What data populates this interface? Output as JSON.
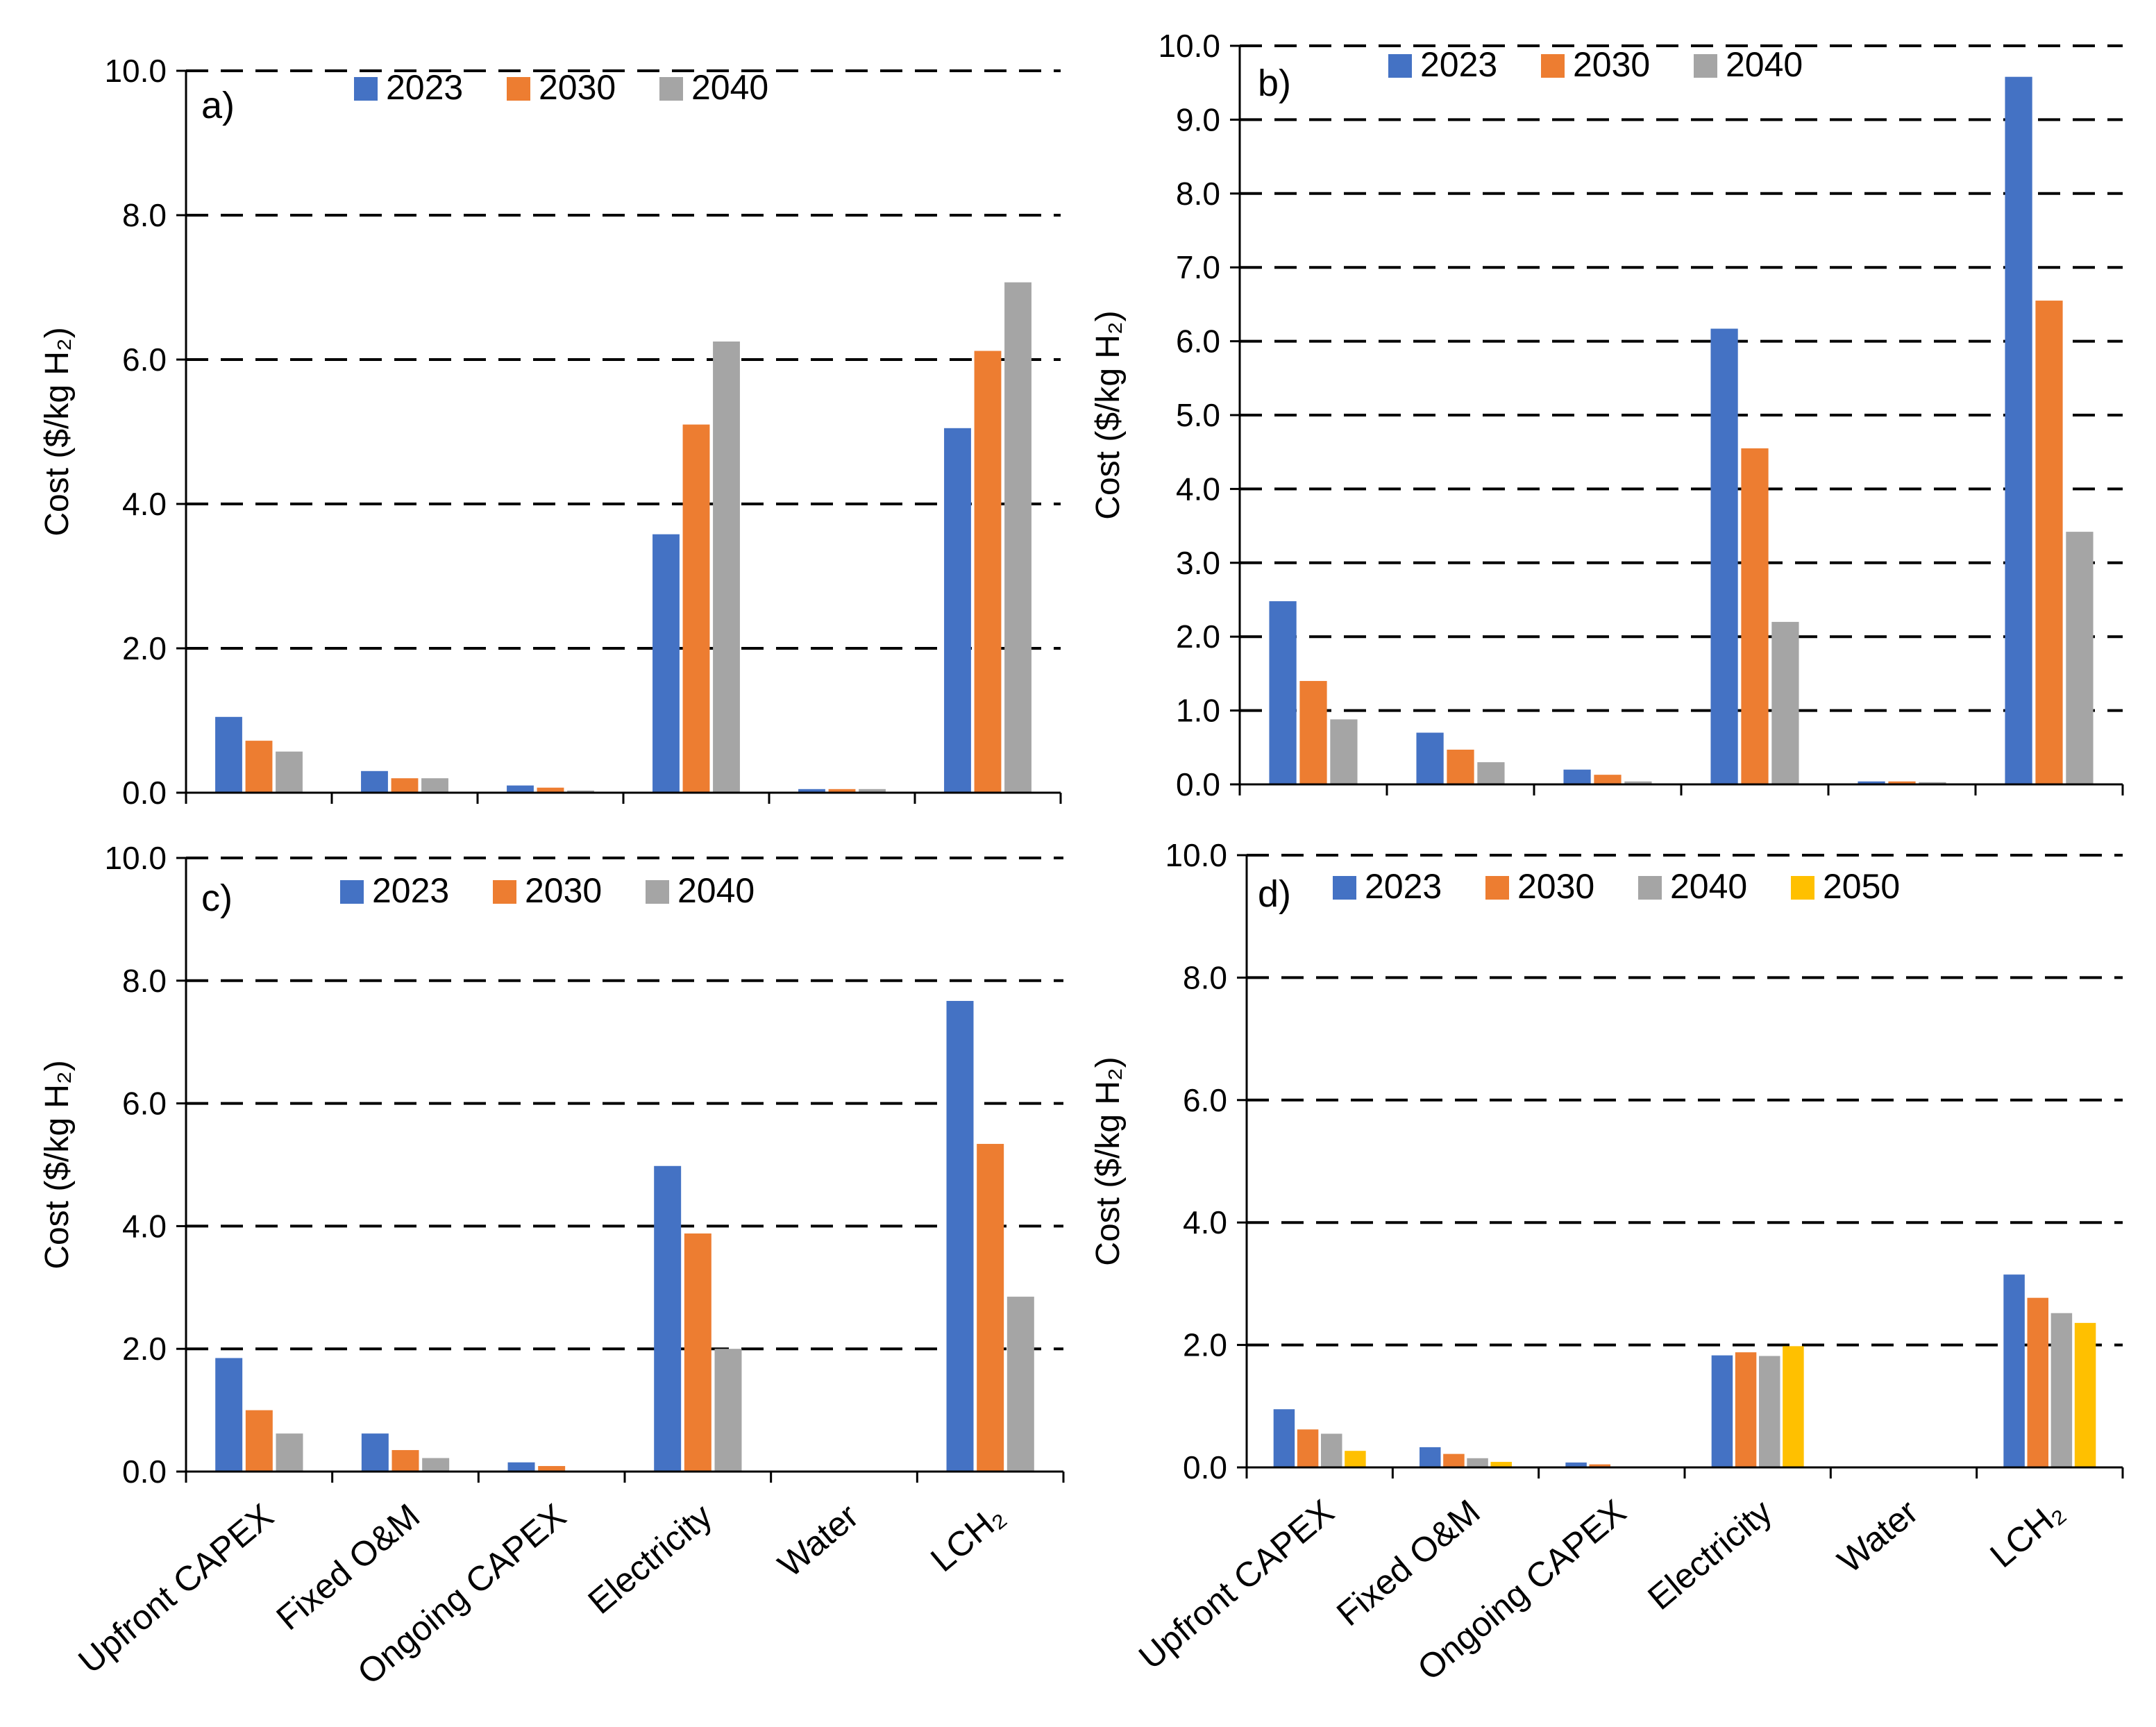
{
  "colors": {
    "2023": "#4472C4",
    "2030": "#ED7D31",
    "2040": "#A5A5A5",
    "2050": "#FFC000"
  },
  "chart_data": [
    {
      "panel_label": "a)",
      "type": "bar",
      "ylabel": "Cost ($/kg H₂)",
      "ylim": [
        0,
        10
      ],
      "ytick_step": 2,
      "yticks": [
        "0.0",
        "2.0",
        "4.0",
        "6.0",
        "8.0",
        "10.0"
      ],
      "grid": "dashed-horizontal",
      "legend": "top-center",
      "categories": [
        "Upfront CAPEX",
        "Fixed O&M",
        "Ongoing CAPEX",
        "Electricity",
        "Water",
        "LCH₂"
      ],
      "show_category_labels": false,
      "series": [
        {
          "name": "2023",
          "values": [
            1.05,
            0.3,
            0.1,
            3.58,
            0.05,
            5.05
          ]
        },
        {
          "name": "2030",
          "values": [
            0.72,
            0.2,
            0.07,
            5.1,
            0.05,
            6.12
          ]
        },
        {
          "name": "2040",
          "values": [
            0.57,
            0.2,
            0.03,
            6.25,
            0.05,
            7.07
          ]
        }
      ]
    },
    {
      "panel_label": "b)",
      "type": "bar",
      "ylabel": "Cost ($/kg H₂)",
      "ylim": [
        0,
        10
      ],
      "ytick_step": 1,
      "yticks": [
        "0.0",
        "1.0",
        "2.0",
        "3.0",
        "4.0",
        "5.0",
        "6.0",
        "7.0",
        "8.0",
        "9.0",
        "10.0"
      ],
      "grid": "dashed-horizontal",
      "legend": "top-center",
      "categories": [
        "Upfront CAPEX",
        "Fixed O&M",
        "Ongoing CAPEX",
        "Electricity",
        "Water",
        "LCH₂"
      ],
      "show_category_labels": false,
      "series": [
        {
          "name": "2023",
          "values": [
            2.48,
            0.7,
            0.2,
            6.17,
            0.04,
            9.58
          ]
        },
        {
          "name": "2030",
          "values": [
            1.4,
            0.47,
            0.13,
            4.55,
            0.04,
            6.55
          ]
        },
        {
          "name": "2040",
          "values": [
            0.88,
            0.3,
            0.04,
            2.2,
            0.03,
            3.42
          ]
        }
      ]
    },
    {
      "panel_label": "c)",
      "type": "bar",
      "ylabel": "Cost ($/kg H₂)",
      "ylim": [
        0,
        10
      ],
      "ytick_step": 2,
      "yticks": [
        "0.0",
        "2.0",
        "4.0",
        "6.0",
        "8.0",
        "10.0"
      ],
      "grid": "dashed-horizontal",
      "legend": "top-center",
      "categories": [
        "Upfront CAPEX",
        "Fixed O&M",
        "Ongoing CAPEX",
        "Electricity",
        "Water",
        "LCH₂"
      ],
      "show_category_labels": true,
      "series": [
        {
          "name": "2023",
          "values": [
            1.85,
            0.62,
            0.15,
            4.98,
            0.0,
            7.67
          ]
        },
        {
          "name": "2030",
          "values": [
            1.0,
            0.35,
            0.09,
            3.88,
            0.0,
            5.34
          ]
        },
        {
          "name": "2040",
          "values": [
            0.62,
            0.22,
            0.0,
            2.0,
            0.0,
            2.85
          ]
        }
      ]
    },
    {
      "panel_label": "d)",
      "type": "bar",
      "ylabel": "Cost ($/kg H₂)",
      "ylim": [
        0,
        10
      ],
      "ytick_step": 2,
      "yticks": [
        "0.0",
        "2.0",
        "4.0",
        "6.0",
        "8.0",
        "10.0"
      ],
      "grid": "dashed-horizontal",
      "legend": "top-center",
      "categories": [
        "Upfront CAPEX",
        "Fixed O&M",
        "Ongoing CAPEX",
        "Electricity",
        "Water",
        "LCH₂"
      ],
      "show_category_labels": true,
      "series": [
        {
          "name": "2023",
          "values": [
            0.95,
            0.33,
            0.08,
            1.83,
            0.0,
            3.15
          ]
        },
        {
          "name": "2030",
          "values": [
            0.62,
            0.22,
            0.05,
            1.88,
            0.0,
            2.77
          ]
        },
        {
          "name": "2040",
          "values": [
            0.55,
            0.15,
            0.0,
            1.82,
            0.0,
            2.52
          ]
        },
        {
          "name": "2050",
          "values": [
            0.27,
            0.09,
            0.0,
            1.98,
            0.0,
            2.36
          ]
        }
      ]
    }
  ]
}
